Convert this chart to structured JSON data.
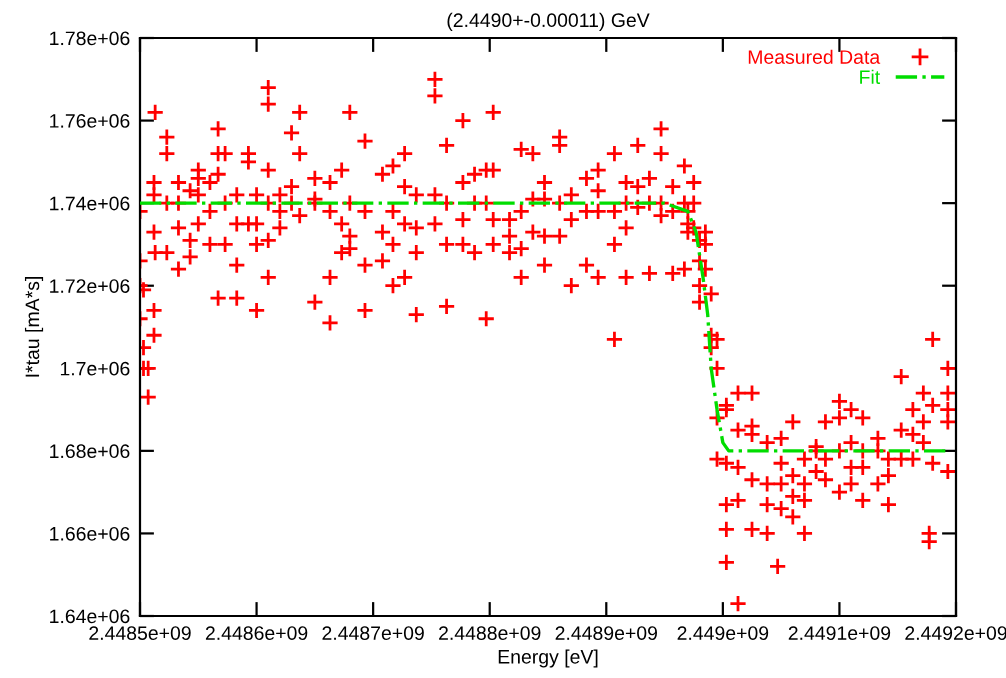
{
  "chart_data": {
    "type": "scatter",
    "title": "(2.4490+-0.00011) GeV",
    "xlabel": "Energy [eV]",
    "ylabel": "I*tau [mA*s]",
    "xlim": [
      2448500000,
      2449200000
    ],
    "xticks": [
      {
        "value": 2448500000,
        "label": "2.4485e+09"
      },
      {
        "value": 2448600000,
        "label": "2.4486e+09"
      },
      {
        "value": 2448700000,
        "label": "2.4487e+09"
      },
      {
        "value": 2448800000,
        "label": "2.4488e+09"
      },
      {
        "value": 2448900000,
        "label": "2.4489e+09"
      },
      {
        "value": 2449000000,
        "label": "2.449e+09"
      },
      {
        "value": 2449100000,
        "label": "2.4491e+09"
      },
      {
        "value": 2449200000,
        "label": "2.4492e+09"
      }
    ],
    "ylim": [
      1640000,
      1780000
    ],
    "yticks": [
      {
        "value": 1640000,
        "label": "1.64e+06"
      },
      {
        "value": 1660000,
        "label": "1.66e+06"
      },
      {
        "value": 1680000,
        "label": "1.68e+06"
      },
      {
        "value": 1700000,
        "label": "1.7e+06"
      },
      {
        "value": 1720000,
        "label": "1.72e+06"
      },
      {
        "value": 1740000,
        "label": "1.74e+06"
      },
      {
        "value": 1760000,
        "label": "1.76e+06"
      },
      {
        "value": 1780000,
        "label": "1.78e+06"
      }
    ],
    "grid": false,
    "legend": "top right",
    "marker": "cross",
    "series": [
      {
        "name": "Measured Data",
        "color": "#ff0000",
        "x": [
          2448500000,
          2448500000,
          2448500000,
          2448500000,
          2448503000,
          2448503000,
          2448503000,
          2448507000,
          2448507000,
          2448512000,
          2448512000,
          2448512000,
          2448512000,
          2448512000,
          2448513000,
          2448513000,
          2448523000,
          2448523000,
          2448523000,
          2448523000,
          2448533000,
          2448533000,
          2448533000,
          2448533000,
          2448543000,
          2448543000,
          2448543000,
          2448550000,
          2448550000,
          2448550000,
          2448550000,
          2448560000,
          2448560000,
          2448560000,
          2448567000,
          2448567000,
          2448567000,
          2448567000,
          2448573000,
          2448573000,
          2448573000,
          2448583000,
          2448583000,
          2448583000,
          2448583000,
          2448593000,
          2448593000,
          2448593000,
          2448600000,
          2448600000,
          2448600000,
          2448600000,
          2448610000,
          2448610000,
          2448610000,
          2448610000,
          2448610000,
          2448610000,
          2448620000,
          2448620000,
          2448620000,
          2448630000,
          2448630000,
          2448630000,
          2448637000,
          2448637000,
          2448637000,
          2448650000,
          2448650000,
          2448650000,
          2448650000,
          2448663000,
          2448663000,
          2448663000,
          2448663000,
          2448673000,
          2448673000,
          2448673000,
          2448680000,
          2448680000,
          2448680000,
          2448680000,
          2448693000,
          2448693000,
          2448693000,
          2448693000,
          2448708000,
          2448708000,
          2448708000,
          2448717000,
          2448717000,
          2448717000,
          2448717000,
          2448727000,
          2448727000,
          2448727000,
          2448727000,
          2448737000,
          2448737000,
          2448737000,
          2448737000,
          2448753000,
          2448753000,
          2448753000,
          2448753000,
          2448763000,
          2448763000,
          2448763000,
          2448763000,
          2448777000,
          2448777000,
          2448777000,
          2448777000,
          2448787000,
          2448787000,
          2448787000,
          2448797000,
          2448797000,
          2448797000,
          2448803000,
          2448803000,
          2448803000,
          2448803000,
          2448817000,
          2448817000,
          2448817000,
          2448827000,
          2448827000,
          2448827000,
          2448827000,
          2448837000,
          2448837000,
          2448837000,
          2448847000,
          2448847000,
          2448847000,
          2448847000,
          2448860000,
          2448860000,
          2448860000,
          2448860000,
          2448870000,
          2448870000,
          2448870000,
          2448883000,
          2448883000,
          2448883000,
          2448893000,
          2448893000,
          2448893000,
          2448893000,
          2448907000,
          2448907000,
          2448907000,
          2448907000,
          2448917000,
          2448917000,
          2448917000,
          2448917000,
          2448927000,
          2448927000,
          2448927000,
          2448937000,
          2448937000,
          2448937000,
          2448947000,
          2448947000,
          2448947000,
          2448947000,
          2448957000,
          2448957000,
          2448957000,
          2448967000,
          2448967000,
          2448967000,
          2448970000,
          2448970000,
          2448970000,
          2448975000,
          2448975000,
          2448975000,
          2448980000,
          2448980000,
          2448980000,
          2448980000,
          2448985000,
          2448985000,
          2448985000,
          2448990000,
          2448990000,
          2448990000,
          2448995000,
          2448995000,
          2448995000,
          2448995000,
          2449003000,
          2449003000,
          2449003000,
          2449003000,
          2449003000,
          2449003000,
          2449013000,
          2449013000,
          2449013000,
          2449013000,
          2449013000,
          2449025000,
          2449025000,
          2449025000,
          2449025000,
          2449025000,
          2449038000,
          2449038000,
          2449038000,
          2449038000,
          2449047000,
          2449050000,
          2449050000,
          2449050000,
          2449050000,
          2449060000,
          2449060000,
          2449060000,
          2449060000,
          2449070000,
          2449070000,
          2449070000,
          2449070000,
          2449080000,
          2449080000,
          2449080000,
          2449088000,
          2449088000,
          2449088000,
          2449100000,
          2449100000,
          2449100000,
          2449100000,
          2449110000,
          2449110000,
          2449110000,
          2449110000,
          2449120000,
          2449120000,
          2449120000,
          2449120000,
          2449133000,
          2449133000,
          2449133000,
          2449142000,
          2449142000,
          2449142000,
          2449153000,
          2449153000,
          2449153000,
          2449163000,
          2449163000,
          2449163000,
          2449172000,
          2449172000,
          2449172000,
          2449177000,
          2449177000,
          2449180000,
          2449180000,
          2449180000,
          2449193000,
          2449193000,
          2449193000,
          2449193000,
          2449193000
        ],
        "values": [
          1720000,
          1712000,
          1726000,
          1738000,
          1719000,
          1705000,
          1700000,
          1693000,
          1700000,
          1742000,
          1745000,
          1733000,
          1714000,
          1708000,
          1762000,
          1728000,
          1756000,
          1752000,
          1740000,
          1728000,
          1745000,
          1740000,
          1734000,
          1724000,
          1743000,
          1731000,
          1727000,
          1748000,
          1746000,
          1742000,
          1735000,
          1745000,
          1738000,
          1730000,
          1758000,
          1752000,
          1747000,
          1717000,
          1752000,
          1740000,
          1730000,
          1742000,
          1735000,
          1725000,
          1717000,
          1750000,
          1752000,
          1735000,
          1742000,
          1735000,
          1730000,
          1714000,
          1768000,
          1764000,
          1748000,
          1740000,
          1731000,
          1722000,
          1742000,
          1738000,
          1734000,
          1757000,
          1744000,
          1740000,
          1762000,
          1752000,
          1737000,
          1746000,
          1741000,
          1716000,
          1740000,
          1745000,
          1738000,
          1722000,
          1711000,
          1748000,
          1735000,
          1728000,
          1762000,
          1740000,
          1729000,
          1732000,
          1755000,
          1738000,
          1725000,
          1714000,
          1747000,
          1733000,
          1726000,
          1749000,
          1738000,
          1730000,
          1720000,
          1752000,
          1744000,
          1735000,
          1722000,
          1742000,
          1734000,
          1728000,
          1713000,
          1770000,
          1766000,
          1742000,
          1735000,
          1754000,
          1740000,
          1730000,
          1715000,
          1760000,
          1745000,
          1736000,
          1730000,
          1747000,
          1740000,
          1728000,
          1748000,
          1740000,
          1712000,
          1762000,
          1748000,
          1736000,
          1730000,
          1736000,
          1732000,
          1728000,
          1753000,
          1738000,
          1729000,
          1722000,
          1752000,
          1741000,
          1733000,
          1745000,
          1741000,
          1732000,
          1725000,
          1756000,
          1754000,
          1740000,
          1732000,
          1742000,
          1736000,
          1720000,
          1746000,
          1738000,
          1725000,
          1748000,
          1743000,
          1738000,
          1722000,
          1752000,
          1738000,
          1730000,
          1707000,
          1745000,
          1740000,
          1734000,
          1722000,
          1754000,
          1744000,
          1739000,
          1746000,
          1740000,
          1723000,
          1758000,
          1752000,
          1740000,
          1737000,
          1744000,
          1738000,
          1723000,
          1749000,
          1740000,
          1724000,
          1738000,
          1735000,
          1733000,
          1745000,
          1740000,
          1734000,
          1731000,
          1726000,
          1720000,
          1716000,
          1733000,
          1730000,
          1724000,
          1718000,
          1708000,
          1705000,
          1707000,
          1700000,
          1688000,
          1678000,
          1691000,
          1690000,
          1677000,
          1667000,
          1661000,
          1653000,
          1694000,
          1685000,
          1676000,
          1668000,
          1643000,
          1694000,
          1686000,
          1684000,
          1673000,
          1661000,
          1682000,
          1672000,
          1660000,
          1667000,
          1652000,
          1683000,
          1677000,
          1666000,
          1672000,
          1687000,
          1674000,
          1669000,
          1664000,
          1678000,
          1672000,
          1668000,
          1660000,
          1681000,
          1680000,
          1675000,
          1687000,
          1678000,
          1673000,
          1692000,
          1688000,
          1680000,
          1670000,
          1690000,
          1682000,
          1676000,
          1672000,
          1688000,
          1680000,
          1676000,
          1668000,
          1683000,
          1680000,
          1672000,
          1678000,
          1674000,
          1667000,
          1698000,
          1685000,
          1678000,
          1690000,
          1684000,
          1678000,
          1694000,
          1687000,
          1682000,
          1658000,
          1660000,
          1707000,
          1691000,
          1677000,
          1700000,
          1694000,
          1690000,
          1687000,
          1675000
        ]
      },
      {
        "name": "Fit",
        "color": "#00dd00",
        "type": "line",
        "marker": "none",
        "line_style": "dashed",
        "x": [
          2448500000,
          2448950000,
          2448970000,
          2448977000,
          2448983000,
          2448987000,
          2448990000,
          2448995000,
          2449000000,
          2449005000,
          2449193000
        ],
        "values": [
          1740000,
          1740000,
          1738000,
          1733000,
          1722000,
          1713000,
          1700000,
          1690000,
          1682000,
          1680000,
          1680000
        ]
      }
    ]
  }
}
